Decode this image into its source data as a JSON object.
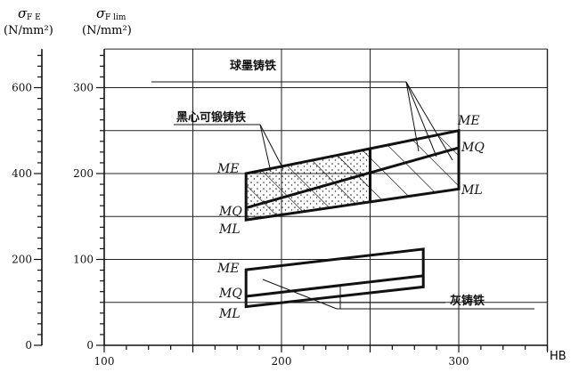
{
  "chart_data": {
    "type": "area",
    "title": "",
    "xlabel": "HB",
    "ylabel_left": {
      "symbol": "σ",
      "subscript": "F E",
      "unit": "(N/mm²)"
    },
    "ylabel_right": {
      "symbol": "σ",
      "subscript": "F lim",
      "unit": "(N/mm²)"
    },
    "xlim": [
      100,
      350
    ],
    "ylim": [
      0,
      345
    ],
    "ylim_left": [
      0,
      690
    ],
    "x_ticks": [
      "100",
      "200",
      "300"
    ],
    "y_ticks": [
      "0",
      "100",
      "200",
      "300"
    ],
    "y_ticks_left": [
      "0",
      "200",
      "400",
      "600"
    ],
    "grid": true,
    "line_labels": [
      "ME",
      "MQ",
      "ML"
    ],
    "series": [
      {
        "name": "黑心可锻铸铁",
        "fill": "dots+hatch",
        "x": [
          180,
          250
        ],
        "ME": [
          200,
          229
        ],
        "MQ": [
          160,
          201
        ],
        "ML": [
          146,
          167
        ]
      },
      {
        "name": "球墨铸铁",
        "fill": "hatch",
        "x": [
          250,
          300
        ],
        "ME": [
          229,
          250
        ],
        "MQ": [
          201,
          230
        ],
        "ML": [
          167,
          182
        ]
      },
      {
        "name": "灰铸铁",
        "fill": "none",
        "x": [
          180,
          280
        ],
        "ME": [
          88,
          112
        ],
        "MQ": [
          57,
          81
        ],
        "ML": [
          45,
          68
        ]
      }
    ]
  }
}
